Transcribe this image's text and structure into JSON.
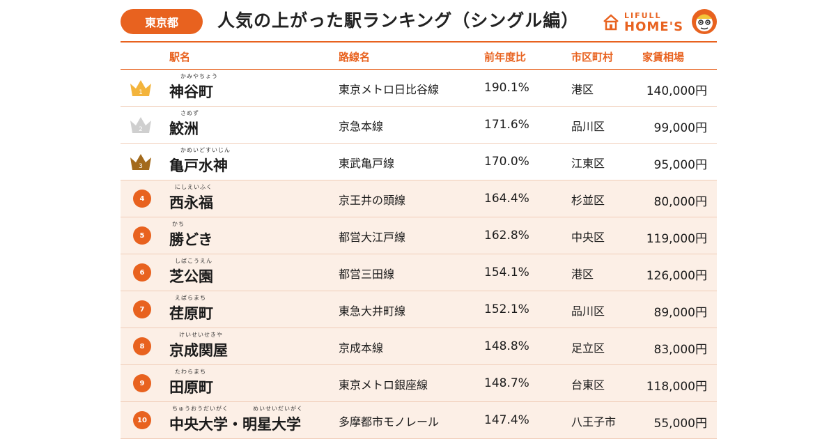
{
  "header": {
    "region_badge": "東京都",
    "title": "人気の上がった駅ランキング（シングル編）",
    "logo_top": "LIFULL",
    "logo_bottom": "HOME'S"
  },
  "columns": {
    "station": "駅名",
    "line": "路線名",
    "yoy": "前年度比",
    "city": "市区町村",
    "rent": "家賃相場"
  },
  "colors": {
    "accent": "#e8621f",
    "row_tint": "#fcefe6",
    "gold": "#f3b43c",
    "silver": "#cfcfcf",
    "bronze": "#a36a1c"
  },
  "rows": [
    {
      "rank": "1",
      "ruby": "かみやちょう",
      "ruby2": "",
      "station": "神谷町",
      "line": "東京メトロ日比谷線",
      "yoy": "190.1%",
      "city": "港区",
      "rent": "140,000円"
    },
    {
      "rank": "2",
      "ruby": "さめず",
      "ruby2": "",
      "station": "鮫洲",
      "line": "京急本線",
      "yoy": "171.6%",
      "city": "品川区",
      "rent": "99,000円"
    },
    {
      "rank": "3",
      "ruby": "かめいどすいじん",
      "ruby2": "",
      "station": "亀戸水神",
      "line": "東武亀戸線",
      "yoy": "170.0%",
      "city": "江東区",
      "rent": "95,000円"
    },
    {
      "rank": "4",
      "ruby": "にしえいふく",
      "ruby2": "",
      "station": "西永福",
      "line": "京王井の頭線",
      "yoy": "164.4%",
      "city": "杉並区",
      "rent": "80,000円"
    },
    {
      "rank": "5",
      "ruby": "かち",
      "ruby2": "",
      "station": "勝どき",
      "line": "都営大江戸線",
      "yoy": "162.8%",
      "city": "中央区",
      "rent": "119,000円"
    },
    {
      "rank": "6",
      "ruby": "しばこうえん",
      "ruby2": "",
      "station": "芝公園",
      "line": "都営三田線",
      "yoy": "154.1%",
      "city": "港区",
      "rent": "126,000円"
    },
    {
      "rank": "7",
      "ruby": "えばらまち",
      "ruby2": "",
      "station": "荏原町",
      "line": "東急大井町線",
      "yoy": "152.1%",
      "city": "品川区",
      "rent": "89,000円"
    },
    {
      "rank": "8",
      "ruby": "けいせいせきや",
      "ruby2": "",
      "station": "京成関屋",
      "line": "京成本線",
      "yoy": "148.8%",
      "city": "足立区",
      "rent": "83,000円"
    },
    {
      "rank": "9",
      "ruby": "たわらまち",
      "ruby2": "",
      "station": "田原町",
      "line": "東京メトロ銀座線",
      "yoy": "148.7%",
      "city": "台東区",
      "rent": "118,000円"
    },
    {
      "rank": "10",
      "ruby": "ちゅうおうだいがく",
      "ruby2": "めいせいだいがく",
      "station": "中央大学・明星大学",
      "line": "多摩都市モノレール",
      "yoy": "147.4%",
      "city": "八王子市",
      "rent": "55,000円"
    }
  ]
}
